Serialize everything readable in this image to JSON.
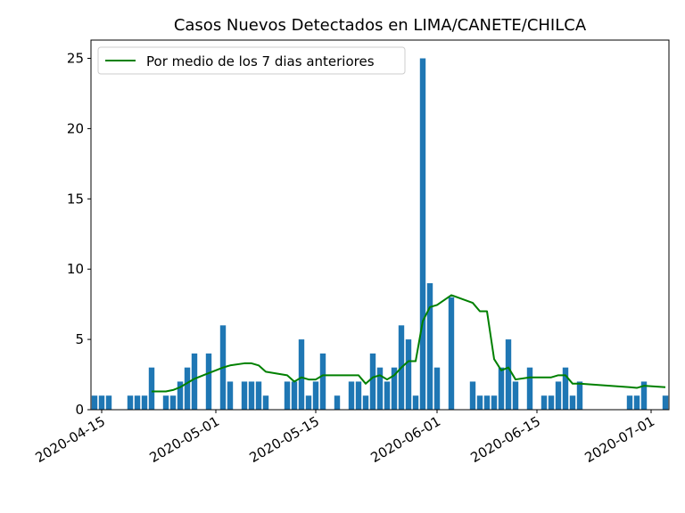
{
  "chart_data": {
    "type": "bar",
    "title": "Casos Nuevos Detectados en LIMA/CANETE/CHILCA",
    "xlabel": "",
    "ylabel": "",
    "ylim": [
      0,
      26.3
    ],
    "x_range": [
      "2020-04-14",
      "2020-07-03"
    ],
    "x_ticks": [
      "2020-04-15",
      "2020-05-01",
      "2020-05-15",
      "2020-06-01",
      "2020-06-15",
      "2020-07-01"
    ],
    "y_ticks": [
      0,
      5,
      10,
      15,
      20,
      25
    ],
    "legend": {
      "position": "upper left",
      "entries": [
        "Por medio de los 7 dias anteriores"
      ]
    },
    "colors": {
      "bars": "#1f77b4",
      "line": "#008000"
    },
    "series": [
      {
        "kind": "bar",
        "values": [
          {
            "x": "2020-04-14",
            "y": 1
          },
          {
            "x": "2020-04-15",
            "y": 1
          },
          {
            "x": "2020-04-16",
            "y": 1
          },
          {
            "x": "2020-04-18",
            "y": 0
          },
          {
            "x": "2020-04-19",
            "y": 1
          },
          {
            "x": "2020-04-20",
            "y": 1
          },
          {
            "x": "2020-04-21",
            "y": 1
          },
          {
            "x": "2020-04-22",
            "y": 3
          },
          {
            "x": "2020-04-24",
            "y": 1
          },
          {
            "x": "2020-04-25",
            "y": 1
          },
          {
            "x": "2020-04-26",
            "y": 2
          },
          {
            "x": "2020-04-27",
            "y": 3
          },
          {
            "x": "2020-04-28",
            "y": 4
          },
          {
            "x": "2020-04-30",
            "y": 4
          },
          {
            "x": "2020-05-02",
            "y": 6
          },
          {
            "x": "2020-05-03",
            "y": 2
          },
          {
            "x": "2020-05-05",
            "y": 2
          },
          {
            "x": "2020-05-06",
            "y": 2
          },
          {
            "x": "2020-05-07",
            "y": 2
          },
          {
            "x": "2020-05-08",
            "y": 1
          },
          {
            "x": "2020-05-11",
            "y": 2
          },
          {
            "x": "2020-05-12",
            "y": 2
          },
          {
            "x": "2020-05-13",
            "y": 5
          },
          {
            "x": "2020-05-14",
            "y": 1
          },
          {
            "x": "2020-05-15",
            "y": 2
          },
          {
            "x": "2020-05-16",
            "y": 4
          },
          {
            "x": "2020-05-18",
            "y": 1
          },
          {
            "x": "2020-05-20",
            "y": 2
          },
          {
            "x": "2020-05-21",
            "y": 2
          },
          {
            "x": "2020-05-22",
            "y": 1
          },
          {
            "x": "2020-05-23",
            "y": 4
          },
          {
            "x": "2020-05-24",
            "y": 3
          },
          {
            "x": "2020-05-25",
            "y": 2
          },
          {
            "x": "2020-05-26",
            "y": 3
          },
          {
            "x": "2020-05-27",
            "y": 6
          },
          {
            "x": "2020-05-28",
            "y": 5
          },
          {
            "x": "2020-05-29",
            "y": 1
          },
          {
            "x": "2020-05-30",
            "y": 25
          },
          {
            "x": "2020-05-31",
            "y": 9
          },
          {
            "x": "2020-06-01",
            "y": 3
          },
          {
            "x": "2020-06-03",
            "y": 8
          },
          {
            "x": "2020-06-06",
            "y": 2
          },
          {
            "x": "2020-06-07",
            "y": 1
          },
          {
            "x": "2020-06-08",
            "y": 1
          },
          {
            "x": "2020-06-09",
            "y": 1
          },
          {
            "x": "2020-06-10",
            "y": 3
          },
          {
            "x": "2020-06-11",
            "y": 5
          },
          {
            "x": "2020-06-12",
            "y": 2
          },
          {
            "x": "2020-06-14",
            "y": 3
          },
          {
            "x": "2020-06-16",
            "y": 1
          },
          {
            "x": "2020-06-17",
            "y": 1
          },
          {
            "x": "2020-06-18",
            "y": 2
          },
          {
            "x": "2020-06-19",
            "y": 3
          },
          {
            "x": "2020-06-20",
            "y": 1
          },
          {
            "x": "2020-06-21",
            "y": 2
          },
          {
            "x": "2020-06-28",
            "y": 1
          },
          {
            "x": "2020-06-29",
            "y": 1
          },
          {
            "x": "2020-06-30",
            "y": 2
          },
          {
            "x": "2020-07-03",
            "y": 1
          }
        ]
      },
      {
        "kind": "line",
        "name": "Por medio de los 7 dias anteriores",
        "values": [
          {
            "x": "2020-04-22",
            "y": 1.3
          },
          {
            "x": "2020-04-24",
            "y": 1.3
          },
          {
            "x": "2020-04-25",
            "y": 1.4
          },
          {
            "x": "2020-04-26",
            "y": 1.6
          },
          {
            "x": "2020-04-27",
            "y": 1.9
          },
          {
            "x": "2020-04-28",
            "y": 2.2
          },
          {
            "x": "2020-04-30",
            "y": 2.6
          },
          {
            "x": "2020-05-02",
            "y": 3.0
          },
          {
            "x": "2020-05-03",
            "y": 3.15
          },
          {
            "x": "2020-05-05",
            "y": 3.3
          },
          {
            "x": "2020-05-06",
            "y": 3.3
          },
          {
            "x": "2020-05-07",
            "y": 3.15
          },
          {
            "x": "2020-05-08",
            "y": 2.7
          },
          {
            "x": "2020-05-11",
            "y": 2.45
          },
          {
            "x": "2020-05-12",
            "y": 2.0
          },
          {
            "x": "2020-05-13",
            "y": 2.3
          },
          {
            "x": "2020-05-14",
            "y": 2.15
          },
          {
            "x": "2020-05-15",
            "y": 2.15
          },
          {
            "x": "2020-05-16",
            "y": 2.45
          },
          {
            "x": "2020-05-18",
            "y": 2.45
          },
          {
            "x": "2020-05-20",
            "y": 2.45
          },
          {
            "x": "2020-05-21",
            "y": 2.45
          },
          {
            "x": "2020-05-22",
            "y": 1.85
          },
          {
            "x": "2020-05-23",
            "y": 2.3
          },
          {
            "x": "2020-05-24",
            "y": 2.45
          },
          {
            "x": "2020-05-25",
            "y": 2.15
          },
          {
            "x": "2020-05-26",
            "y": 2.45
          },
          {
            "x": "2020-05-27",
            "y": 3.0
          },
          {
            "x": "2020-05-28",
            "y": 3.45
          },
          {
            "x": "2020-05-29",
            "y": 3.45
          },
          {
            "x": "2020-05-30",
            "y": 6.3
          },
          {
            "x": "2020-05-31",
            "y": 7.3
          },
          {
            "x": "2020-06-01",
            "y": 7.45
          },
          {
            "x": "2020-06-03",
            "y": 8.15
          },
          {
            "x": "2020-06-06",
            "y": 7.6
          },
          {
            "x": "2020-06-07",
            "y": 7.0
          },
          {
            "x": "2020-06-08",
            "y": 7.0
          },
          {
            "x": "2020-06-09",
            "y": 3.6
          },
          {
            "x": "2020-06-10",
            "y": 2.8
          },
          {
            "x": "2020-06-11",
            "y": 3.0
          },
          {
            "x": "2020-06-12",
            "y": 2.15
          },
          {
            "x": "2020-06-14",
            "y": 2.3
          },
          {
            "x": "2020-06-16",
            "y": 2.3
          },
          {
            "x": "2020-06-17",
            "y": 2.3
          },
          {
            "x": "2020-06-18",
            "y": 2.45
          },
          {
            "x": "2020-06-19",
            "y": 2.45
          },
          {
            "x": "2020-06-20",
            "y": 1.85
          },
          {
            "x": "2020-06-21",
            "y": 1.85
          },
          {
            "x": "2020-06-28",
            "y": 1.6
          },
          {
            "x": "2020-06-29",
            "y": 1.55
          },
          {
            "x": "2020-06-30",
            "y": 1.7
          },
          {
            "x": "2020-07-03",
            "y": 1.6
          }
        ]
      }
    ]
  }
}
